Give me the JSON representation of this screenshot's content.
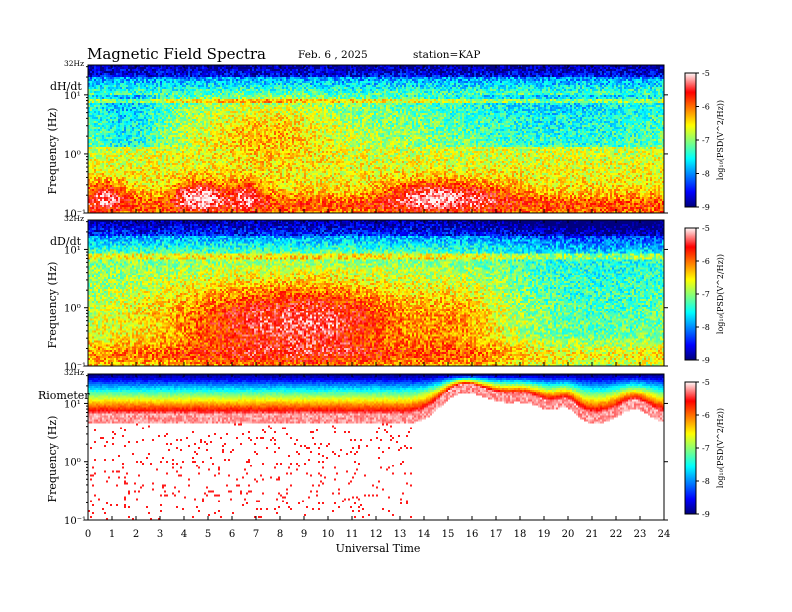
{
  "header": {
    "title": "Magnetic  Field  Spectra",
    "date": "Feb. 6  , 2025",
    "station": "station=KAP"
  },
  "chart_data": [
    {
      "type": "heatmap",
      "panel_label": "dH/dt",
      "ylabel": "Frequency  (Hz)",
      "top_label": "32Hz",
      "y_ticks": [
        "10⁻¹",
        "10⁰",
        "10¹"
      ],
      "colorbar": {
        "label": "log₁₀(PSD(V^2/Hz))",
        "range": [
          -9,
          -5
        ],
        "ticks": [
          "-5",
          "-6",
          "-7",
          "-8",
          "-9"
        ]
      },
      "profile": "dh"
    },
    {
      "type": "heatmap",
      "panel_label": "dD/dt",
      "ylabel": "Frequency  (Hz)",
      "top_label": "32Hz",
      "y_ticks": [
        "10⁻¹",
        "10⁰",
        "10¹"
      ],
      "colorbar": {
        "label": "log₁₀(PSD(V^2/Hz))",
        "range": [
          -9,
          -5
        ],
        "ticks": [
          "-5",
          "-6",
          "-7",
          "-8",
          "-9"
        ]
      },
      "profile": "dd"
    },
    {
      "type": "heatmap",
      "panel_label": "Riometer",
      "ylabel": "Frequency  (Hz)",
      "top_label": "32Hz",
      "y_ticks": [
        "10⁻¹",
        "10⁰",
        "10¹"
      ],
      "colorbar": {
        "label": "log₁₀(PSD(V^2/Hz))",
        "range": [
          -9,
          -5
        ],
        "ticks": [
          "-5",
          "-6",
          "-7",
          "-8",
          "-9"
        ]
      },
      "profile": "rio"
    }
  ],
  "x_axis": {
    "label": "Universal Time",
    "ticks": [
      "0",
      "1",
      "2",
      "3",
      "4",
      "5",
      "6",
      "7",
      "8",
      "9",
      "10",
      "11",
      "12",
      "13",
      "14",
      "15",
      "16",
      "17",
      "18",
      "19",
      "20",
      "21",
      "22",
      "23",
      "24"
    ],
    "range": [
      0,
      24
    ]
  }
}
